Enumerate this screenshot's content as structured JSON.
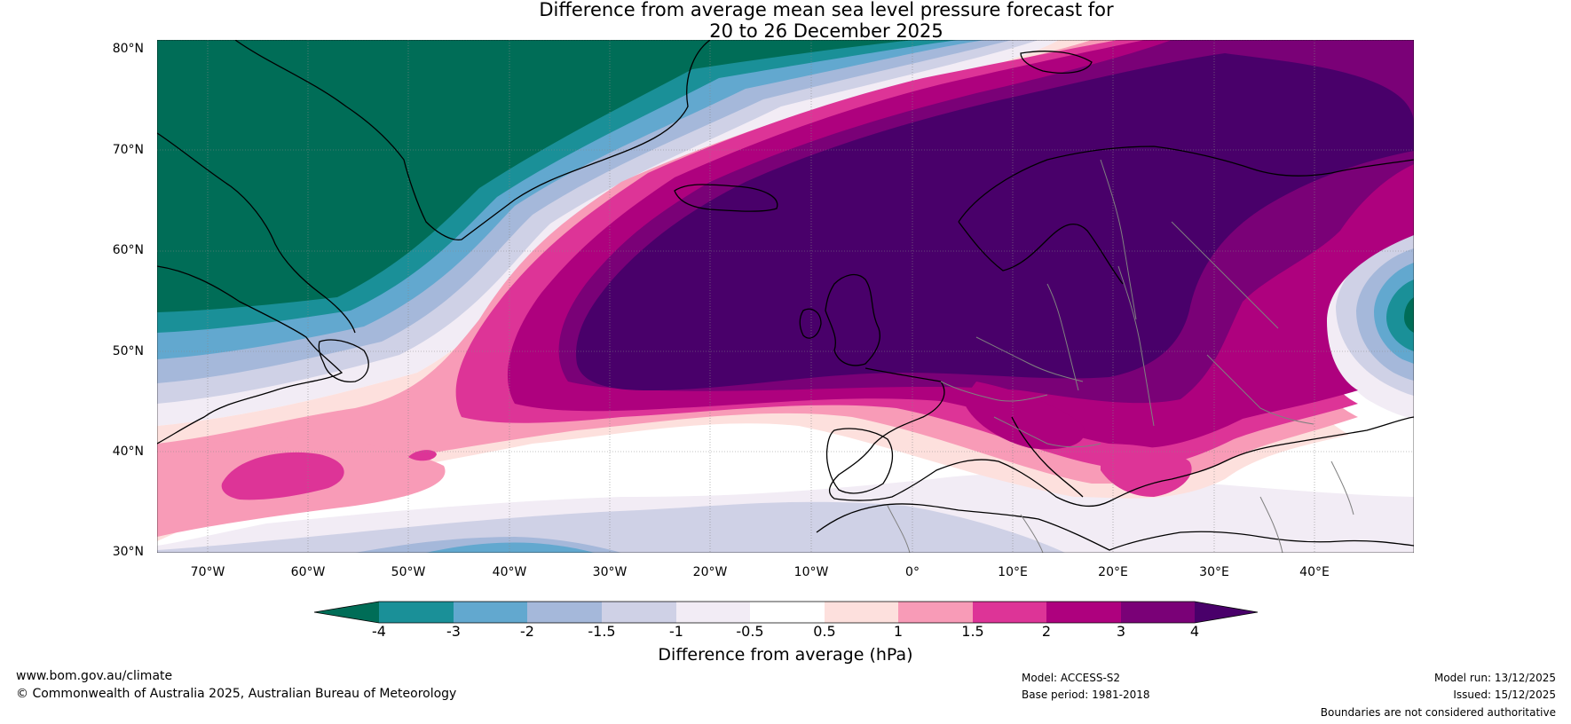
{
  "title": {
    "line1": "Difference from average mean sea level pressure forecast for",
    "line2": "20 to 26 December 2025"
  },
  "map": {
    "lat_labels": [
      "80°N",
      "70°N",
      "60°N",
      "50°N",
      "40°N",
      "30°N"
    ],
    "lon_labels": [
      "70°W",
      "60°W",
      "50°W",
      "40°W",
      "30°W",
      "20°W",
      "10°W",
      "0°",
      "10°E",
      "20°E",
      "30°E",
      "40°E"
    ],
    "extent": {
      "lon": [
        -75,
        50
      ],
      "lat": [
        30,
        81
      ]
    },
    "field": "mean sea level pressure difference from average (hPa)"
  },
  "colorbar": {
    "title": "Difference from average (hPa)",
    "ticks": [
      "-4",
      "-3",
      "-2",
      "-1.5",
      "-1",
      "-0.5",
      "0.5",
      "1",
      "1.5",
      "2",
      "3",
      "4"
    ],
    "colors": [
      "#006d57",
      "#1a9098",
      "#62a8cf",
      "#a5b8da",
      "#cfd1e6",
      "#f2ecf5",
      "#ffffff",
      "#fde0dd",
      "#f89bb7",
      "#dd3497",
      "#ae017e",
      "#7a0177",
      "#49006a"
    ]
  },
  "footer": {
    "website": "www.bom.gov.au/climate",
    "copyright": "© Commonwealth of Australia 2025, Australian Bureau of Meteorology",
    "model": "Model: ACCESS-S2",
    "base_period": "Base period: 1981-2018",
    "model_run": "Model run: 13/12/2025",
    "issued": "Issued: 15/12/2025",
    "disclaimer": "Boundaries are not considered authoritative"
  }
}
